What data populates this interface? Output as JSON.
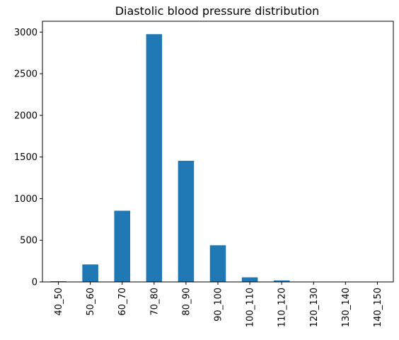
{
  "chart_data": {
    "type": "bar",
    "title": "Diastolic blood pressure distribution",
    "xlabel": "",
    "ylabel": "",
    "categories": [
      "40_50",
      "50_60",
      "60_70",
      "70_80",
      "80_90",
      "90_100",
      "100_110",
      "110_120",
      "120_130",
      "130_140",
      "140_150"
    ],
    "values": [
      8,
      210,
      855,
      2975,
      1455,
      440,
      55,
      18,
      2,
      2,
      1
    ],
    "ylim": [
      0,
      3130
    ],
    "yticks": [
      0,
      500,
      1000,
      1500,
      2000,
      2500,
      3000
    ],
    "grid": false,
    "legend": "none",
    "bar_color": "#1f77b4"
  }
}
